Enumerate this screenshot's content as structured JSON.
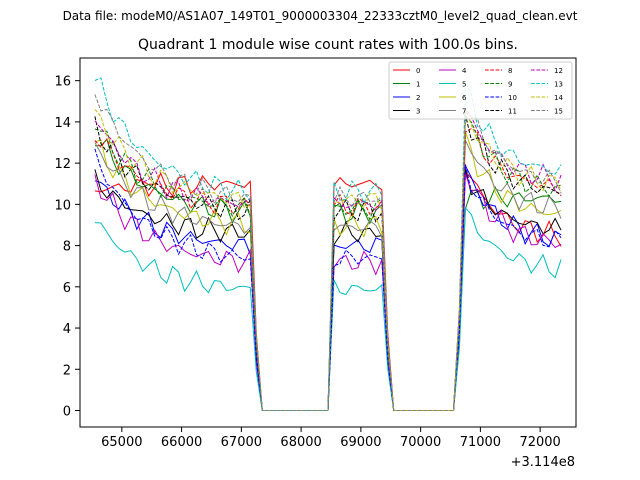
{
  "chart_data": {
    "type": "line",
    "suptitle": "Data file: modeM0/AS1A07_149T01_9000003304_22333cztM0_level2_quad_clean.evt",
    "title": "Quadrant 1 module wise count rates with 100.0s bins.",
    "xlabel": "",
    "ylabel": "",
    "x_offset_label": "+3.114e8",
    "xlim": [
      64300,
      72600
    ],
    "ylim": [
      -0.8,
      17.1
    ],
    "xticks": [
      65000,
      66000,
      67000,
      68000,
      69000,
      70000,
      71000,
      72000
    ],
    "xtick_labels": [
      "65000",
      "66000",
      "67000",
      "68000",
      "69000",
      "70000",
      "71000",
      "72000"
    ],
    "yticks": [
      0,
      2,
      4,
      6,
      8,
      10,
      12,
      14,
      16
    ],
    "ytick_labels": [
      "0",
      "2",
      "4",
      "6",
      "8",
      "10",
      "12",
      "14",
      "16"
    ],
    "legend_position": "top-right",
    "segments": [
      {
        "start": 64550,
        "end": 67150
      },
      {
        "start": 68550,
        "end": 69350
      },
      {
        "start": 70750,
        "end": 72350
      }
    ],
    "series": [
      {
        "name": "0",
        "color": "#ff0000",
        "dash": false,
        "base": [
          10.7,
          11.0,
          11.9,
          8.5
        ]
      },
      {
        "name": "1",
        "color": "#008000",
        "dash": false,
        "base": [
          13.4,
          9.6,
          10.3,
          10.3
        ]
      },
      {
        "name": "2",
        "color": "#0000ff",
        "dash": false,
        "base": [
          11.3,
          8.0,
          11.8,
          8.3
        ]
      },
      {
        "name": "3",
        "color": "#000000",
        "dash": false,
        "base": [
          11.2,
          8.6,
          11.5,
          8.8
        ]
      },
      {
        "name": "4",
        "color": "#bf00bf",
        "dash": false,
        "base": [
          11.2,
          7.2,
          11.6,
          8.1
        ]
      },
      {
        "name": "5",
        "color": "#00bfbf",
        "dash": false,
        "base": [
          9.3,
          5.9,
          9.7,
          6.9
        ]
      },
      {
        "name": "6",
        "color": "#bfbf00",
        "dash": false,
        "base": [
          13.0,
          9.0,
          13.1,
          9.5
        ]
      },
      {
        "name": "7",
        "color": "#808080",
        "dash": false,
        "base": [
          12.9,
          8.9,
          13.2,
          9.8
        ]
      },
      {
        "name": "8",
        "color": "#ff0000",
        "dash": true,
        "base": [
          13.5,
          9.9,
          14.1,
          10.8
        ]
      },
      {
        "name": "9",
        "color": "#008000",
        "dash": true,
        "base": [
          14.0,
          9.8,
          14.4,
          10.7
        ]
      },
      {
        "name": "10",
        "color": "#0000ff",
        "dash": true,
        "base": [
          12.3,
          7.4,
          11.6,
          8.2
        ]
      },
      {
        "name": "11",
        "color": "#000000",
        "dash": true,
        "base": [
          13.8,
          9.7,
          14.3,
          10.6
        ]
      },
      {
        "name": "12",
        "color": "#bf00bf",
        "dash": true,
        "base": [
          14.2,
          10.0,
          14.7,
          11.2
        ]
      },
      {
        "name": "13",
        "color": "#00bfbf",
        "dash": true,
        "base": [
          16.2,
          10.6,
          15.6,
          11.6
        ]
      },
      {
        "name": "14",
        "color": "#bfbf00",
        "dash": true,
        "base": [
          14.5,
          10.2,
          14.5,
          11.0
        ]
      },
      {
        "name": "15",
        "color": "#808080",
        "dash": true,
        "base": [
          15.5,
          10.3,
          15.0,
          11.1
        ]
      }
    ]
  }
}
